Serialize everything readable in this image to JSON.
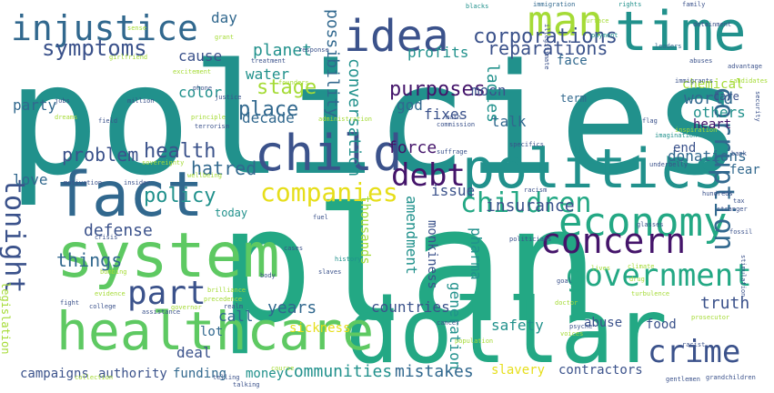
{
  "palette": {
    "dark_purple": "#44146a",
    "indigo": "#3b528b",
    "blue": "#31688e",
    "teal": "#21918c",
    "green_teal": "#23a884",
    "green": "#5ec962",
    "lime": "#a5db36",
    "yellow": "#e6de1a"
  },
  "words": [
    {
      "text": "policies",
      "color": "#21918c"
    },
    {
      "text": "plan",
      "color": "#23a884"
    },
    {
      "text": "dollar",
      "color": "#23a884"
    },
    {
      "text": "healthcare",
      "color": "#5ec962"
    },
    {
      "text": "system",
      "color": "#5ec962"
    },
    {
      "text": "fact",
      "color": "#31688e"
    },
    {
      "text": "politics",
      "color": "#21918c"
    },
    {
      "text": "child",
      "color": "#3b528b"
    },
    {
      "text": "economy",
      "color": "#23a884"
    },
    {
      "text": "time",
      "color": "#21918c"
    },
    {
      "text": "injustice",
      "color": "#31688e"
    },
    {
      "text": "idea",
      "color": "#3b528b"
    },
    {
      "text": "man",
      "color": "#a5db36"
    },
    {
      "text": "government",
      "color": "#23a884"
    },
    {
      "text": "concern",
      "color": "#44146a"
    },
    {
      "text": "companies",
      "color": "#e6de1a"
    },
    {
      "text": "children",
      "color": "#23a884"
    },
    {
      "text": "part",
      "color": "#3b528b"
    },
    {
      "text": "crime",
      "color": "#3b528b"
    },
    {
      "text": "debt",
      "color": "#44146a"
    },
    {
      "text": "corruption",
      "color": "#31688e"
    },
    {
      "text": "tonight",
      "color": "#3b528b"
    },
    {
      "text": "symptoms",
      "color": "#3b528b"
    },
    {
      "text": "stage",
      "color": "#a5db36"
    },
    {
      "text": "corporations",
      "color": "#3b528b"
    },
    {
      "text": "reparations",
      "color": "#3b528b"
    },
    {
      "text": "health",
      "color": "#3b528b"
    },
    {
      "text": "place",
      "color": "#31688e"
    },
    {
      "text": "problem",
      "color": "#3b528b"
    },
    {
      "text": "hatred",
      "color": "#31688e"
    },
    {
      "text": "policy",
      "color": "#21918c"
    },
    {
      "text": "defense",
      "color": "#3b528b"
    },
    {
      "text": "purposes",
      "color": "#44146a"
    },
    {
      "text": "world",
      "color": "#31688e"
    },
    {
      "text": "force",
      "color": "#44146a"
    },
    {
      "text": "truth",
      "color": "#3b528b"
    },
    {
      "text": "things",
      "color": "#31688e"
    },
    {
      "text": "years",
      "color": "#31688e"
    },
    {
      "text": "communities",
      "color": "#21918c"
    },
    {
      "text": "mistakes",
      "color": "#31688e"
    },
    {
      "text": "generation",
      "color": "#21918c"
    },
    {
      "text": "love",
      "color": "#31688e"
    },
    {
      "text": "insurance",
      "color": "#3b528b"
    },
    {
      "text": "possibility",
      "color": "#31688e"
    },
    {
      "text": "conversation",
      "color": "#21918c"
    },
    {
      "text": "moon",
      "color": "#3b528b"
    },
    {
      "text": "planet",
      "color": "#21918c"
    },
    {
      "text": "profits",
      "color": "#21918c"
    },
    {
      "text": "water",
      "color": "#21918c"
    },
    {
      "text": "cause",
      "color": "#3b528b"
    },
    {
      "text": "party",
      "color": "#31688e"
    },
    {
      "text": "color",
      "color": "#21918c"
    },
    {
      "text": "decade",
      "color": "#31688e"
    },
    {
      "text": "god",
      "color": "#31688e"
    },
    {
      "text": "fixes",
      "color": "#3b528b"
    },
    {
      "text": "donations",
      "color": "#31688e"
    },
    {
      "text": "others",
      "color": "#21918c"
    },
    {
      "text": "talk",
      "color": "#31688e"
    },
    {
      "text": "ladies",
      "color": "#21918c"
    },
    {
      "text": "issue",
      "color": "#3b528b"
    },
    {
      "text": "thousands",
      "color": "#a5db36"
    },
    {
      "text": "pharma",
      "color": "#21918c"
    },
    {
      "text": "amendment",
      "color": "#21918c"
    },
    {
      "text": "monkiness",
      "color": "#3b528b"
    },
    {
      "text": "sickness",
      "color": "#e6de1a"
    },
    {
      "text": "safety",
      "color": "#21918c"
    },
    {
      "text": "countries",
      "color": "#3b528b"
    },
    {
      "text": "call",
      "color": "#31688e"
    },
    {
      "text": "lot",
      "color": "#31688e"
    },
    {
      "text": "deal",
      "color": "#3b528b"
    },
    {
      "text": "funding",
      "color": "#31688e"
    },
    {
      "text": "authority",
      "color": "#3b528b"
    },
    {
      "text": "campaigns",
      "color": "#3b528b"
    },
    {
      "text": "money",
      "color": "#21918c"
    },
    {
      "text": "slavery",
      "color": "#e6de1a"
    },
    {
      "text": "contractors",
      "color": "#3b528b"
    },
    {
      "text": "abuse",
      "color": "#3b528b"
    },
    {
      "text": "food",
      "color": "#3b528b"
    },
    {
      "text": "fear",
      "color": "#31688e"
    },
    {
      "text": "end",
      "color": "#3b528b"
    },
    {
      "text": "heart",
      "color": "#44146a"
    },
    {
      "text": "chemical",
      "color": "#a5db36"
    },
    {
      "text": "term",
      "color": "#31688e"
    },
    {
      "text": "face",
      "color": "#31688e"
    },
    {
      "text": "care",
      "color": "#3b528b"
    },
    {
      "text": "day",
      "color": "#31688e"
    },
    {
      "text": "today",
      "color": "#21918c"
    },
    {
      "text": "legislation",
      "color": "#a5db36"
    },
    {
      "text": "blacks",
      "color": "#21918c"
    },
    {
      "text": "immigration",
      "color": "#31688e"
    },
    {
      "text": "rights",
      "color": "#21918c"
    },
    {
      "text": "family",
      "color": "#3b528b"
    },
    {
      "text": "detainment",
      "color": "#3b528b"
    },
    {
      "text": "girlfriend",
      "color": "#a5db36"
    },
    {
      "text": "leaders",
      "color": "#31688e"
    },
    {
      "text": "payment",
      "color": "#21918c"
    },
    {
      "text": "founders",
      "color": "#a5db36"
    },
    {
      "text": "administration",
      "color": "#a5db36"
    },
    {
      "text": "principle",
      "color": "#a5db36"
    },
    {
      "text": "terrorism",
      "color": "#3b528b"
    },
    {
      "text": "justice",
      "color": "#3b528b"
    },
    {
      "text": "phone",
      "color": "#3b528b"
    },
    {
      "text": "commission",
      "color": "#3b528b"
    },
    {
      "text": "math",
      "color": "#3b528b"
    },
    {
      "text": "imagination",
      "color": "#21918c"
    },
    {
      "text": "suffrage",
      "color": "#3b528b"
    },
    {
      "text": "specifics",
      "color": "#3b528b"
    },
    {
      "text": "underbelly",
      "color": "#3b528b"
    },
    {
      "text": "stranger",
      "color": "#3b528b"
    },
    {
      "text": "hundreds",
      "color": "#3b528b"
    },
    {
      "text": "racism",
      "color": "#3b528b"
    },
    {
      "text": "politicians",
      "color": "#3b528b"
    },
    {
      "text": "history",
      "color": "#21918c"
    },
    {
      "text": "slaves",
      "color": "#3b528b"
    },
    {
      "text": "voices",
      "color": "#a5db36"
    },
    {
      "text": "psyche",
      "color": "#3b528b"
    },
    {
      "text": "racist",
      "color": "#3b528b"
    },
    {
      "text": "grandchildren",
      "color": "#3b528b"
    },
    {
      "text": "gentlemen",
      "color": "#3b528b"
    },
    {
      "text": "assistance",
      "color": "#3b528b"
    },
    {
      "text": "college",
      "color": "#3b528b"
    },
    {
      "text": "governor",
      "color": "#a5db36"
    },
    {
      "text": "brilliance",
      "color": "#a5db36"
    },
    {
      "text": "precedence",
      "color": "#a5db36"
    },
    {
      "text": "collection",
      "color": "#a5db36"
    },
    {
      "text": "telling",
      "color": "#3b528b"
    },
    {
      "text": "fight",
      "color": "#3b528b"
    },
    {
      "text": "evidence",
      "color": "#a5db36"
    },
    {
      "text": "bombing",
      "color": "#a5db36"
    },
    {
      "text": "sovereignty",
      "color": "#a5db36"
    },
    {
      "text": "motivation",
      "color": "#3b528b"
    },
    {
      "text": "insider",
      "color": "#3b528b"
    },
    {
      "text": "wellbeing",
      "color": "#a5db36"
    },
    {
      "text": "turbulence",
      "color": "#a5db36"
    },
    {
      "text": "drug",
      "color": "#a5db36"
    },
    {
      "text": "goal",
      "color": "#3b528b"
    },
    {
      "text": "prosecutor",
      "color": "#a5db36"
    },
    {
      "text": "stimulation",
      "color": "#3b528b"
    },
    {
      "text": "fossil",
      "color": "#3b528b"
    },
    {
      "text": "bank",
      "color": "#3b528b"
    },
    {
      "text": "inspiration",
      "color": "#a5db36"
    },
    {
      "text": "glasses",
      "color": "#3b528b"
    },
    {
      "text": "tax",
      "color": "#3b528b"
    },
    {
      "text": "sense",
      "color": "#a5db36"
    },
    {
      "text": "grant",
      "color": "#a5db36"
    },
    {
      "text": "jobs",
      "color": "#3b528b"
    },
    {
      "text": "dreams",
      "color": "#a5db36"
    },
    {
      "text": "field",
      "color": "#3b528b"
    },
    {
      "text": "excitement",
      "color": "#a5db36"
    },
    {
      "text": "treatment",
      "color": "#3b528b"
    },
    {
      "text": "million",
      "color": "#3b528b"
    },
    {
      "text": "response",
      "color": "#3b528b"
    },
    {
      "text": "surface",
      "color": "#a5db36"
    },
    {
      "text": "abuses",
      "color": "#3b528b"
    },
    {
      "text": "illegitimate",
      "color": "#3b528b"
    },
    {
      "text": "advantage",
      "color": "#3b528b"
    },
    {
      "text": "immigrants",
      "color": "#3b528b"
    },
    {
      "text": "candidates",
      "color": "#a5db36"
    },
    {
      "text": "security",
      "color": "#3b528b"
    },
    {
      "text": "flag",
      "color": "#3b528b"
    },
    {
      "text": "climate",
      "color": "#a5db36"
    },
    {
      "text": "lives",
      "color": "#a5db36"
    },
    {
      "text": "population",
      "color": "#a5db36"
    },
    {
      "text": "realm",
      "color": "#3b528b"
    },
    {
      "text": "body",
      "color": "#3b528b"
    },
    {
      "text": "cases",
      "color": "#3b528b"
    },
    {
      "text": "crisis",
      "color": "#3b528b"
    },
    {
      "text": "fuel",
      "color": "#3b528b"
    },
    {
      "text": "course",
      "color": "#a5db36"
    },
    {
      "text": "talking",
      "color": "#3b528b"
    },
    {
      "text": "cancer",
      "color": "#3b528b"
    },
    {
      "text": "doctor",
      "color": "#a5db36"
    }
  ]
}
